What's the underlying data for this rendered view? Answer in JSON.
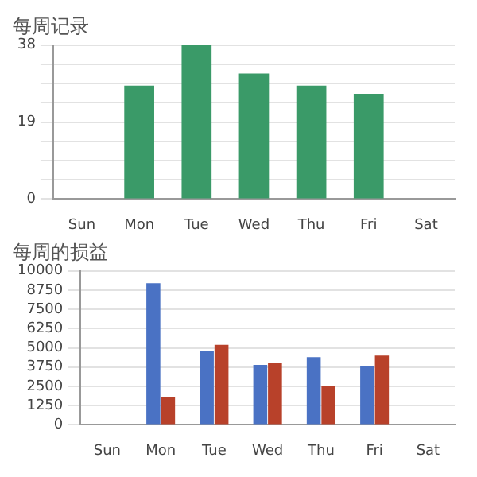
{
  "chart_data": [
    {
      "type": "bar",
      "title": "每周记录",
      "categories": [
        "Sun",
        "Mon",
        "Tue",
        "Wed",
        "Thu",
        "Fri",
        "Sat"
      ],
      "series": [
        {
          "color": "#3a9a68",
          "values": [
            null,
            28,
            38,
            31,
            28,
            26,
            null
          ]
        }
      ],
      "ylim": [
        0,
        38
      ],
      "yticks": [
        0,
        {
          "value": 4.75,
          "label": null
        },
        {
          "value": 9.5,
          "label": null
        },
        {
          "value": 14.25,
          "label": null
        },
        19,
        {
          "value": 23.75,
          "label": null
        },
        {
          "value": 28.5,
          "label": null
        },
        {
          "value": 33.25,
          "label": null
        },
        38
      ],
      "grid": "y"
    },
    {
      "type": "bar",
      "title": "每周的损益",
      "categories": [
        "Sun",
        "Mon",
        "Tue",
        "Wed",
        "Thu",
        "Fri",
        "Sat"
      ],
      "series": [
        {
          "color": "#4a72c4",
          "values": [
            null,
            9200,
            4800,
            3900,
            4400,
            3800,
            null
          ]
        },
        {
          "color": "#b8412a",
          "values": [
            null,
            1800,
            5200,
            4000,
            2500,
            4500,
            null
          ]
        }
      ],
      "ylim": [
        0,
        10000
      ],
      "yticks": [
        0,
        1250,
        2500,
        3750,
        5000,
        6250,
        7500,
        8750,
        10000
      ],
      "grid": "y"
    }
  ]
}
